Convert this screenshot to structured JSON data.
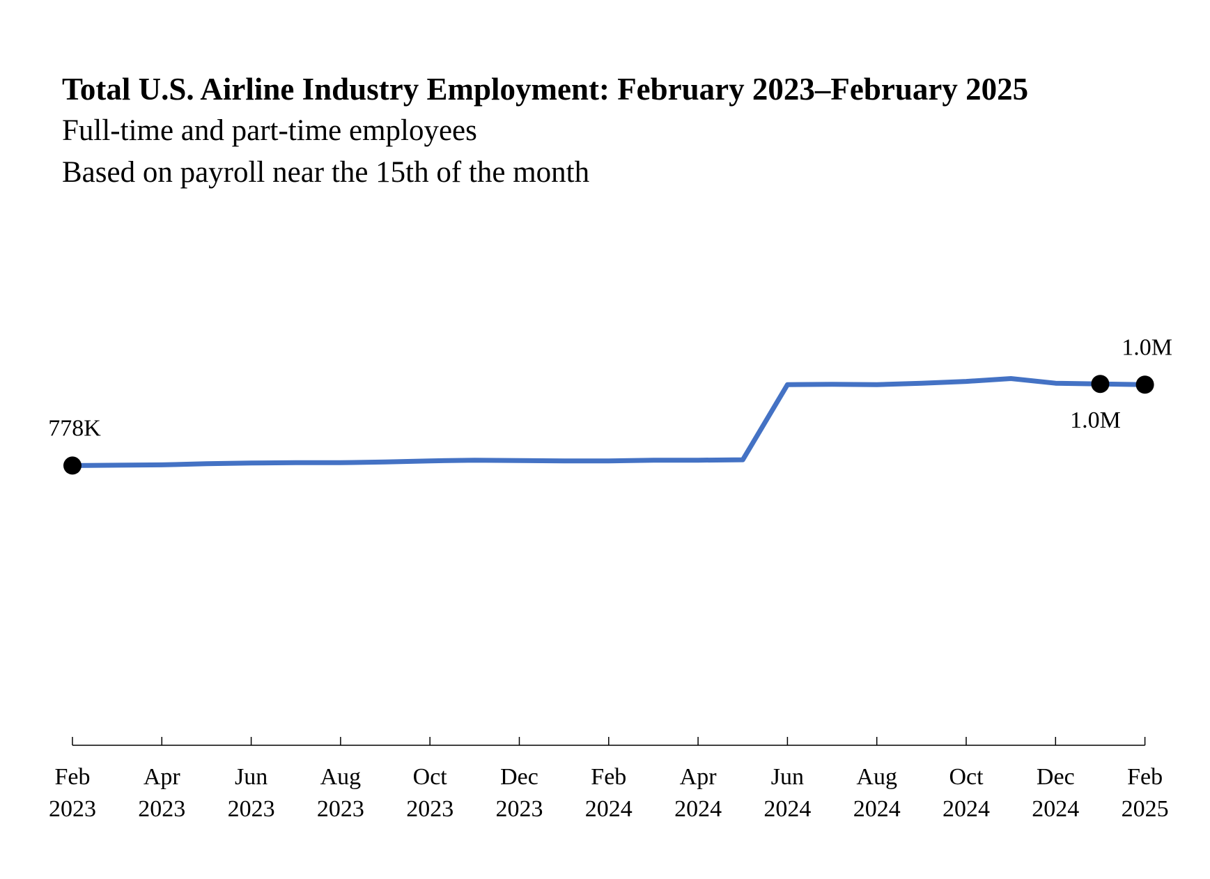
{
  "chart_data": {
    "type": "line",
    "title": "Total U.S. Airline Industry Employment: February 2023–February 2025",
    "subtitle": [
      "Full-time and part-time employees",
      "Based on payroll near the 15th of the month"
    ],
    "xlabel": "",
    "ylabel": "",
    "x_ticks": [
      [
        "Feb",
        "2023"
      ],
      [
        "Apr",
        "2023"
      ],
      [
        "Jun",
        "2023"
      ],
      [
        "Aug",
        "2023"
      ],
      [
        "Oct",
        "2023"
      ],
      [
        "Dec",
        "2023"
      ],
      [
        "Feb",
        "2024"
      ],
      [
        "Apr",
        "2024"
      ],
      [
        "Jun",
        "2024"
      ],
      [
        "Aug",
        "2024"
      ],
      [
        "Oct",
        "2024"
      ],
      [
        "Dec",
        "2024"
      ],
      [
        "Feb",
        "2025"
      ]
    ],
    "x": [
      "2023-02",
      "2023-03",
      "2023-04",
      "2023-05",
      "2023-06",
      "2023-07",
      "2023-08",
      "2023-09",
      "2023-10",
      "2023-11",
      "2023-12",
      "2024-01",
      "2024-02",
      "2024-03",
      "2024-04",
      "2024-05",
      "2024-06",
      "2024-07",
      "2024-08",
      "2024-09",
      "2024-10",
      "2024-11",
      "2024-12",
      "2025-01",
      "2025-02"
    ],
    "series": [
      {
        "color": "#4472C4",
        "values": [
          778,
          779,
          780,
          783,
          785,
          786,
          786,
          788,
          791,
          793,
          792,
          791,
          791,
          793,
          793,
          794,
          1003,
          1004,
          1003,
          1007,
          1012,
          1020,
          1007,
          1005,
          1003
        ]
      }
    ],
    "ylim": [
      0,
      1020
    ],
    "grid": false,
    "annotations": [
      {
        "index": 0,
        "label": "778K",
        "marker": true,
        "position": "above"
      },
      {
        "index": 23,
        "label": "1.0M",
        "marker": true,
        "position": "below"
      },
      {
        "index": 24,
        "label": "1.0M",
        "marker": true,
        "position": "above"
      }
    ]
  }
}
